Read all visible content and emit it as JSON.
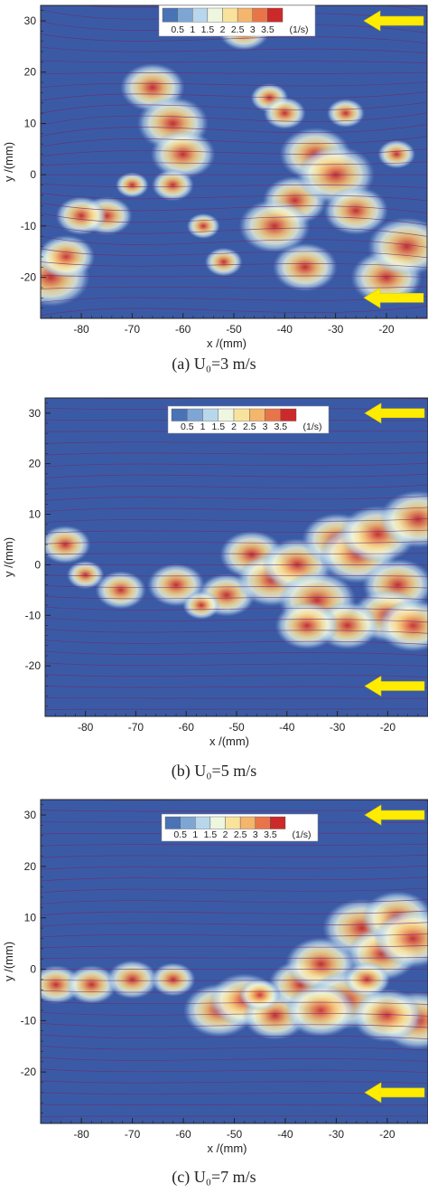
{
  "chart_data": [
    {
      "type": "heatmap",
      "panel": "a",
      "caption": "(a) U₀=3 m/s",
      "xlabel": "x /(mm)",
      "ylabel": "y /(mm)",
      "xlim": [
        -88,
        -12
      ],
      "ylim": [
        -28,
        33
      ],
      "xticks": [
        -80,
        -70,
        -60,
        -50,
        -40,
        -30,
        -20
      ],
      "yticks": [
        -20,
        -10,
        0,
        10,
        20,
        30
      ],
      "colorbar": {
        "ticks": [
          "0.5",
          "1",
          "1.5",
          "2",
          "2.5",
          "3",
          "3.5"
        ],
        "unit": "(1/s)"
      },
      "flow_arrows_y": [
        30,
        -24
      ]
    },
    {
      "type": "heatmap",
      "panel": "b",
      "caption": "(b) U₀=5 m/s",
      "xlabel": "x /(mm)",
      "ylabel": "y /(mm)",
      "xlim": [
        -88,
        -12
      ],
      "ylim": [
        -30,
        33
      ],
      "xticks": [
        -80,
        -70,
        -60,
        -50,
        -40,
        -30,
        -20
      ],
      "yticks": [
        -20,
        -10,
        0,
        10,
        20,
        30
      ],
      "colorbar": {
        "ticks": [
          "0.5",
          "1",
          "1.5",
          "2",
          "2.5",
          "3",
          "3.5"
        ],
        "unit": "(1/s)"
      },
      "flow_arrows_y": [
        30,
        -24
      ]
    },
    {
      "type": "heatmap",
      "panel": "c",
      "caption": "(c) U₀=7 m/s",
      "xlabel": "x /(mm)",
      "ylabel": "y /(mm)",
      "xlim": [
        -88,
        -12
      ],
      "ylim": [
        -30,
        33
      ],
      "xticks": [
        -80,
        -70,
        -60,
        -50,
        -40,
        -30,
        -20
      ],
      "yticks": [
        -20,
        -10,
        0,
        10,
        20,
        30
      ],
      "colorbar": {
        "ticks": [
          "0.5",
          "1",
          "1.5",
          "2",
          "2.5",
          "3",
          "3.5"
        ],
        "unit": "(1/s)"
      },
      "flow_arrows_y": [
        30,
        -24
      ]
    }
  ],
  "colors": {
    "background_field": "#3b5aa5",
    "colorbar": [
      "#4a73b6",
      "#7da6d4",
      "#b9d7ec",
      "#eef6df",
      "#f9e39c",
      "#f4b56c",
      "#e8754a",
      "#cc2a2a"
    ],
    "streamline": "#6d2a6e",
    "arrow": "#ffec00"
  }
}
